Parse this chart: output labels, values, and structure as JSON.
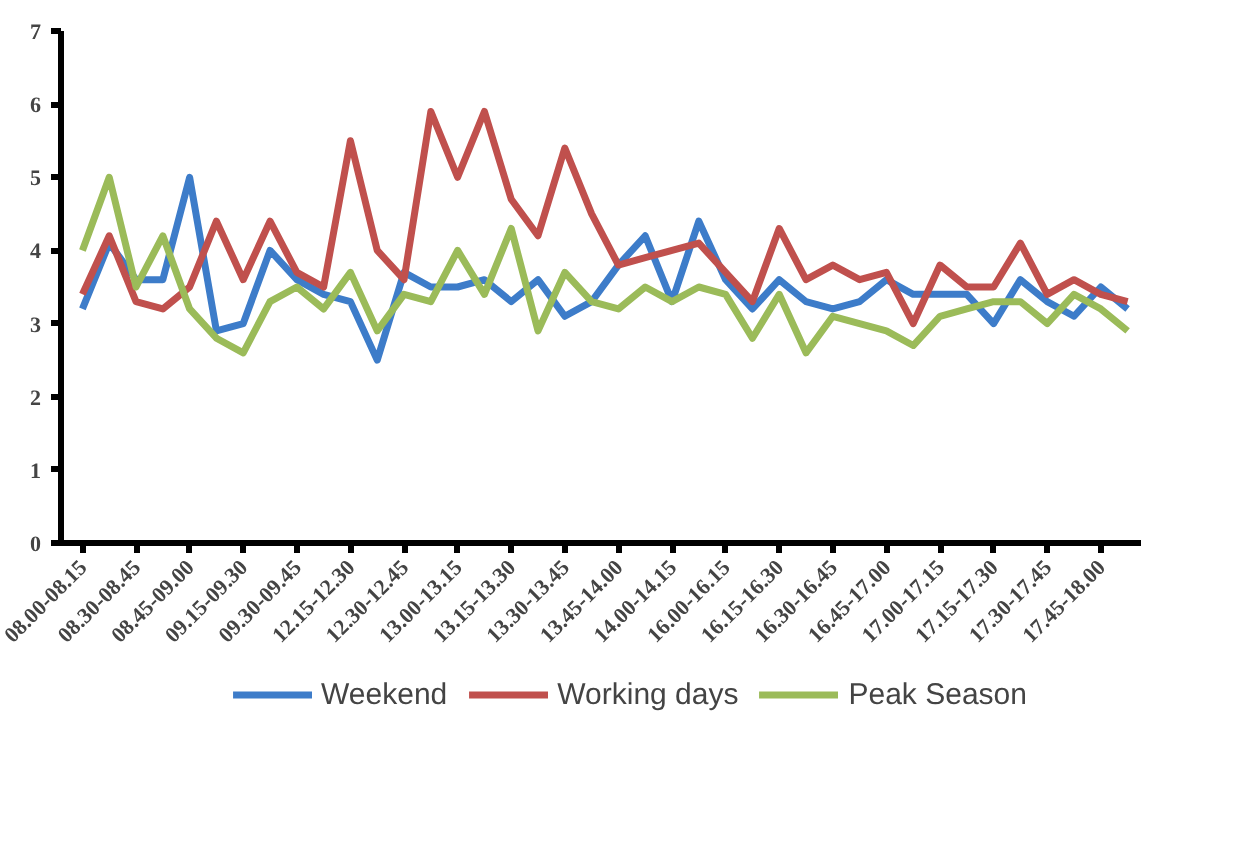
{
  "chart_data": {
    "type": "line",
    "categories": [
      "08.00-08.15",
      null,
      "08.30-08.45",
      null,
      "08.45-09.00",
      null,
      "09.15-09.30",
      null,
      "09.30-09.45",
      null,
      "12.15-12.30",
      null,
      "12.30-12.45",
      null,
      "13.00-13.15",
      null,
      "13.15-13.30",
      null,
      "13.30-13.45",
      null,
      "13.45-14.00",
      null,
      "14.00-14.15",
      null,
      "16.00-16.15",
      null,
      "16.15-16.30",
      null,
      "16.30-16.45",
      null,
      "16.45-17.00",
      null,
      "17.00-17.15",
      null,
      "17.15-17.30",
      null,
      "17.30-17.45",
      null,
      "17.45-18.00",
      null
    ],
    "series": [
      {
        "name": "Weekend",
        "color": "#3d7cc9",
        "values": [
          3.2,
          4.1,
          3.6,
          3.6,
          5.0,
          2.9,
          3.0,
          4.0,
          3.6,
          3.4,
          3.3,
          2.5,
          3.7,
          3.5,
          3.5,
          3.6,
          3.3,
          3.6,
          3.1,
          3.3,
          3.8,
          4.2,
          3.3,
          4.4,
          3.6,
          3.2,
          3.6,
          3.3,
          3.2,
          3.3,
          3.6,
          3.4,
          3.4,
          3.4,
          3.0,
          3.6,
          3.3,
          3.1,
          3.5,
          3.2
        ]
      },
      {
        "name": "Working days",
        "color": "#c0504d",
        "values": [
          3.4,
          4.2,
          3.3,
          3.2,
          3.5,
          4.4,
          3.6,
          4.4,
          3.7,
          3.5,
          5.5,
          4.0,
          3.6,
          5.9,
          5.0,
          5.9,
          4.7,
          4.2,
          5.4,
          4.5,
          3.8,
          3.9,
          4.0,
          4.1,
          3.7,
          3.3,
          4.3,
          3.6,
          3.8,
          3.6,
          3.7,
          3.0,
          3.8,
          3.5,
          3.5,
          4.1,
          3.4,
          3.6,
          3.4,
          3.3
        ]
      },
      {
        "name": "Peak Season",
        "color": "#9bbb59",
        "values": [
          4.0,
          5.0,
          3.5,
          4.2,
          3.2,
          2.8,
          2.6,
          3.3,
          3.5,
          3.2,
          3.7,
          2.9,
          3.4,
          3.3,
          4.0,
          3.4,
          4.3,
          2.9,
          3.7,
          3.3,
          3.2,
          3.5,
          3.3,
          3.5,
          3.4,
          2.8,
          3.4,
          2.6,
          3.1,
          3.0,
          2.9,
          2.7,
          3.1,
          3.2,
          3.3,
          3.3,
          3.0,
          3.4,
          3.2,
          2.9
        ]
      }
    ],
    "ylim": [
      0,
      7
    ],
    "yticks": [
      0,
      1,
      2,
      3,
      4,
      5,
      6,
      7
    ],
    "grid": false,
    "legend": "bottom",
    "marker": "none",
    "line_style": "solid"
  }
}
